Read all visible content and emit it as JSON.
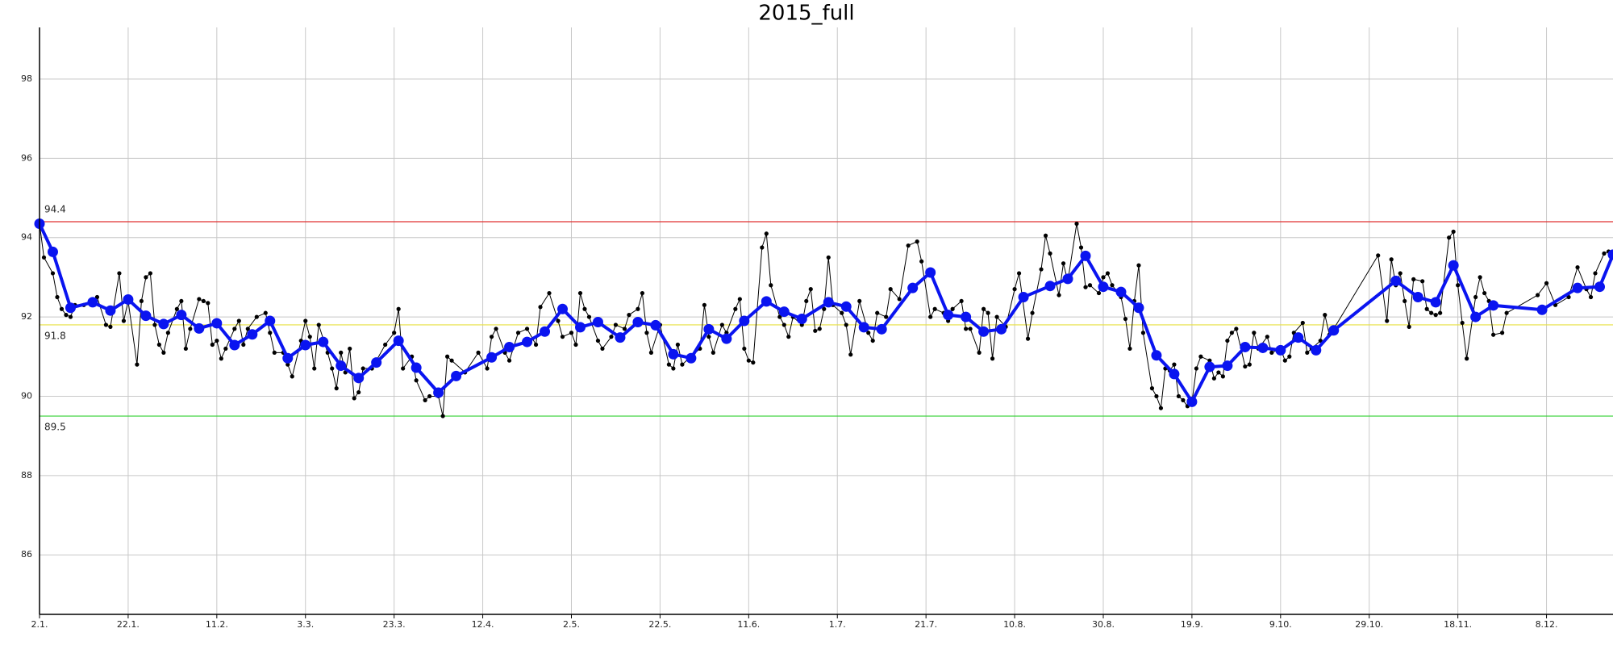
{
  "chart_data": {
    "type": "line",
    "title": "2015_full",
    "grid": true,
    "xlim": [
      "2.1.",
      "23.12."
    ],
    "xticks": [
      "2.1.",
      "22.1.",
      "11.2.",
      "3.3.",
      "23.3.",
      "12.4.",
      "2.5.",
      "22.5.",
      "11.6.",
      "1.7.",
      "21.7.",
      "10.8.",
      "30.8.",
      "19.9.",
      "9.10.",
      "29.10.",
      "18.11.",
      "8.12."
    ],
    "ylim": [
      84.5,
      99.3
    ],
    "yticks": [
      86,
      88,
      90,
      92,
      94,
      96,
      98
    ],
    "hlines": [
      {
        "value": 94.4,
        "color": "#e03030"
      },
      {
        "value": 91.8,
        "color": "#e8e040"
      },
      {
        "value": 89.5,
        "color": "#30d030"
      }
    ],
    "series": [
      {
        "color": "#000000",
        "x": [
          "2.1.",
          "3.1.",
          "5.1.",
          "6.1.",
          "7.1.",
          "8.1.",
          "9.1.",
          "10.1.",
          "12.1.",
          "14.1.",
          "15.1.",
          "17.1.",
          "18.1.",
          "20.1.",
          "21.1.",
          "22.1.",
          "24.1.",
          "25.1.",
          "26.1.",
          "27.1.",
          "28.1.",
          "29.1.",
          "30.1.",
          "31.1.",
          "2.2.",
          "3.2.",
          "4.2.",
          "5.2.",
          "7.2.",
          "8.2.",
          "9.2.",
          "10.2.",
          "11.2.",
          "12.2.",
          "13.2.",
          "15.2.",
          "16.2.",
          "17.2.",
          "18.2.",
          "20.2.",
          "22.2.",
          "23.2.",
          "24.2.",
          "26.2.",
          "27.2.",
          "28.2.",
          "2.3.",
          "3.3.",
          "4.3.",
          "5.3.",
          "6.3.",
          "8.3.",
          "9.3.",
          "10.3.",
          "11.3.",
          "12.3.",
          "13.3.",
          "14.3.",
          "15.3.",
          "16.3.",
          "18.3.",
          "19.3.",
          "21.3.",
          "23.3.",
          "24.3.",
          "25.3.",
          "27.3.",
          "28.3.",
          "30.3.",
          "31.3.",
          "2.4.",
          "3.4.",
          "4.4.",
          "5.4.",
          "8.4.",
          "11.4.",
          "13.4.",
          "14.4.",
          "15.4.",
          "17.4.",
          "18.4.",
          "20.4.",
          "22.4.",
          "24.4.",
          "25.4.",
          "27.4.",
          "29.4.",
          "30.4.",
          "2.5.",
          "3.5.",
          "4.5.",
          "5.5.",
          "6.5.",
          "8.5.",
          "9.5.",
          "11.5.",
          "12.5.",
          "14.5.",
          "15.5.",
          "17.5.",
          "18.5.",
          "19.5.",
          "20.5.",
          "22.5.",
          "24.5.",
          "25.5.",
          "26.5.",
          "27.5.",
          "29.5.",
          "31.5.",
          "1.6.",
          "2.6.",
          "3.6.",
          "5.6.",
          "6.6.",
          "8.6.",
          "9.6.",
          "10.6.",
          "11.6.",
          "12.6.",
          "14.6.",
          "15.6.",
          "16.6.",
          "18.6.",
          "19.6.",
          "20.6.",
          "21.6.",
          "23.6.",
          "24.6.",
          "25.6.",
          "26.6.",
          "27.6.",
          "28.6.",
          "29.6.",
          "30.6.",
          "2.7.",
          "3.7.",
          "4.7.",
          "6.7.",
          "8.7.",
          "9.7.",
          "10.7.",
          "12.7.",
          "13.7.",
          "15.7.",
          "17.7.",
          "19.7.",
          "20.7.",
          "22.7.",
          "23.7.",
          "25.7.",
          "26.7.",
          "27.7.",
          "29.7.",
          "30.7.",
          "31.7.",
          "2.8.",
          "3.8.",
          "4.8.",
          "5.8.",
          "6.8.",
          "8.8.",
          "10.8.",
          "11.8.",
          "13.8.",
          "14.8.",
          "16.8.",
          "17.8.",
          "18.8.",
          "20.8.",
          "21.8.",
          "22.8.",
          "24.8.",
          "25.8.",
          "26.8.",
          "27.8.",
          "29.8.",
          "30.8.",
          "31.8.",
          "1.9.",
          "3.9.",
          "4.9.",
          "5.9.",
          "6.9.",
          "7.9.",
          "8.9.",
          "10.9.",
          "11.9.",
          "12.9.",
          "13.9.",
          "14.9.",
          "15.9.",
          "16.9.",
          "17.9.",
          "18.9.",
          "19.9.",
          "20.9.",
          "21.9.",
          "23.9.",
          "24.9.",
          "25.9.",
          "26.9.",
          "27.9.",
          "28.9.",
          "29.9.",
          "1.10.",
          "2.10.",
          "3.10.",
          "4.10.",
          "6.10.",
          "7.10.",
          "9.10.",
          "10.10.",
          "11.10.",
          "12.10.",
          "14.10.",
          "15.10.",
          "16.10.",
          "18.10.",
          "19.10.",
          "20.10.",
          "21.10.",
          "31.10.",
          "2.11.",
          "3.11.",
          "4.11.",
          "5.11.",
          "6.11.",
          "7.11.",
          "8.11.",
          "10.11.",
          "11.11.",
          "12.11.",
          "13.11.",
          "14.11.",
          "16.11.",
          "17.11.",
          "18.11.",
          "19.11.",
          "20.11.",
          "22.11.",
          "23.11.",
          "24.11.",
          "25.11.",
          "26.11.",
          "28.11.",
          "29.11.",
          "6.12.",
          "8.12.",
          "10.12.",
          "13.12.",
          "15.12.",
          "17.12.",
          "18.12.",
          "19.12.",
          "21.12.",
          "22.12.",
          "23.12."
        ],
        "values": [
          94.35,
          93.5,
          93.1,
          92.5,
          92.2,
          92.05,
          92.0,
          92.3,
          92.3,
          92.4,
          92.5,
          91.8,
          91.75,
          93.1,
          91.9,
          92.4,
          90.8,
          92.4,
          93.0,
          93.1,
          91.8,
          91.3,
          91.1,
          91.6,
          92.2,
          92.4,
          91.2,
          91.7,
          92.45,
          92.4,
          92.35,
          91.3,
          91.4,
          90.95,
          91.2,
          91.7,
          91.9,
          91.3,
          91.7,
          92.0,
          92.1,
          91.6,
          91.1,
          91.1,
          90.8,
          90.5,
          91.4,
          91.9,
          91.5,
          90.7,
          91.8,
          91.1,
          90.7,
          90.2,
          91.1,
          90.6,
          91.2,
          89.95,
          90.1,
          90.7,
          90.7,
          90.9,
          91.3,
          91.6,
          92.2,
          90.7,
          91.0,
          90.4,
          89.9,
          90.0,
          90.0,
          89.5,
          91.0,
          90.9,
          90.6,
          91.1,
          90.7,
          91.5,
          91.7,
          91.1,
          90.9,
          91.6,
          91.7,
          91.3,
          92.25,
          92.6,
          91.9,
          91.5,
          91.6,
          91.3,
          92.6,
          92.2,
          92.0,
          91.4,
          91.2,
          91.5,
          91.8,
          91.7,
          92.05,
          92.2,
          92.6,
          91.6,
          91.1,
          91.8,
          90.8,
          90.7,
          91.3,
          90.8,
          91.0,
          91.2,
          92.3,
          91.5,
          91.1,
          91.8,
          91.6,
          92.2,
          92.45,
          91.2,
          90.9,
          90.85,
          93.75,
          94.1,
          92.8,
          92.0,
          91.8,
          91.5,
          92.0,
          91.8,
          92.4,
          92.7,
          91.65,
          91.7,
          92.2,
          93.5,
          92.3,
          92.1,
          91.8,
          91.05,
          92.4,
          91.6,
          91.4,
          92.1,
          92.0,
          92.7,
          92.45,
          93.8,
          93.9,
          93.4,
          92.0,
          92.2,
          92.1,
          91.9,
          92.2,
          92.4,
          91.7,
          91.7,
          91.1,
          92.2,
          92.1,
          90.95,
          92.0,
          91.75,
          92.7,
          93.1,
          91.45,
          92.1,
          93.2,
          94.05,
          93.6,
          92.55,
          93.35,
          92.9,
          94.35,
          93.75,
          92.75,
          92.8,
          92.6,
          93.0,
          93.1,
          92.8,
          92.5,
          91.95,
          91.2,
          92.4,
          93.3,
          91.6,
          90.2,
          90.0,
          89.7,
          90.7,
          90.65,
          90.8,
          90.0,
          89.9,
          89.75,
          89.85,
          90.7,
          91.0,
          90.9,
          90.45,
          90.6,
          90.5,
          91.4,
          91.6,
          91.7,
          90.75,
          90.8,
          91.6,
          91.2,
          91.5,
          91.1,
          91.2,
          90.9,
          91.0,
          91.6,
          91.85,
          91.1,
          91.2,
          91.4,
          92.05,
          91.55,
          91.7,
          93.55,
          91.9,
          93.45,
          92.8,
          93.1,
          92.4,
          91.75,
          92.95,
          92.9,
          92.2,
          92.1,
          92.05,
          92.1,
          94.0,
          94.15,
          92.8,
          91.85,
          90.95,
          92.5,
          93.0,
          92.6,
          92.4,
          91.55,
          91.6,
          92.1,
          92.55,
          92.85,
          92.3,
          92.5,
          93.25,
          92.7,
          92.5,
          93.1,
          93.6,
          93.65,
          93.5
        ]
      },
      {
        "color": "#0a14f0",
        "x": [
          "2.1.",
          "5.1.",
          "9.1.",
          "14.1.",
          "18.1.",
          "22.1.",
          "26.1.",
          "30.1.",
          "3.2.",
          "7.2.",
          "11.2.",
          "15.2.",
          "19.2.",
          "23.2.",
          "27.2.",
          "3.3.",
          "7.3.",
          "11.3.",
          "15.3.",
          "19.3.",
          "24.3.",
          "28.3.",
          "2.4.",
          "6.4.",
          "14.4.",
          "18.4.",
          "22.4.",
          "26.4.",
          "30.4.",
          "4.5.",
          "8.5.",
          "13.5.",
          "17.5.",
          "21.5.",
          "25.5.",
          "29.5.",
          "2.6.",
          "6.6.",
          "10.6.",
          "15.6.",
          "19.6.",
          "23.6.",
          "29.6.",
          "3.7.",
          "7.7.",
          "11.7.",
          "18.7.",
          "22.7.",
          "26.7.",
          "30.7.",
          "3.8.",
          "7.8.",
          "12.8.",
          "18.8.",
          "22.8.",
          "26.8.",
          "30.8.",
          "3.9.",
          "7.9.",
          "11.9.",
          "15.9.",
          "19.9.",
          "23.9.",
          "27.9.",
          "1.10.",
          "5.10.",
          "9.10.",
          "13.10.",
          "17.10.",
          "21.10.",
          "4.11.",
          "9.11.",
          "13.11.",
          "17.11.",
          "22.11.",
          "26.11.",
          "7.12.",
          "15.12.",
          "20.12.",
          "23.12."
        ],
        "values": [
          94.35,
          93.64,
          92.23,
          92.37,
          92.16,
          92.44,
          92.03,
          91.82,
          92.05,
          91.71,
          91.84,
          91.29,
          91.56,
          91.9,
          90.96,
          91.29,
          91.37,
          90.77,
          90.46,
          90.85,
          91.4,
          90.72,
          90.09,
          90.51,
          90.98,
          91.24,
          91.37,
          91.63,
          92.2,
          91.74,
          91.87,
          91.48,
          91.87,
          91.79,
          91.06,
          90.96,
          91.69,
          91.45,
          91.9,
          92.39,
          92.13,
          91.95,
          92.37,
          92.26,
          91.74,
          91.69,
          92.73,
          93.12,
          92.05,
          92.0,
          91.63,
          91.69,
          92.5,
          92.78,
          92.96,
          93.54,
          92.76,
          92.63,
          92.23,
          91.03,
          90.56,
          89.86,
          90.74,
          90.77,
          91.24,
          91.22,
          91.16,
          91.48,
          91.16,
          91.66,
          92.91,
          92.5,
          92.37,
          93.3,
          92.0,
          92.29,
          92.18,
          92.73,
          92.76,
          93.57
        ]
      }
    ]
  }
}
